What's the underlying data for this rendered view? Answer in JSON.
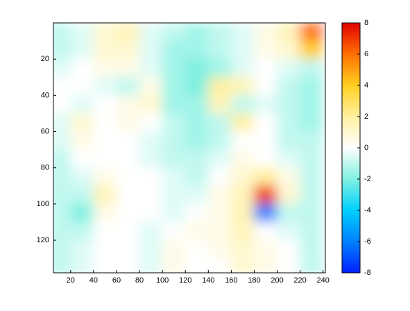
{
  "chart_data": {
    "type": "contour",
    "x": [
      10,
      30,
      50,
      70,
      90,
      110,
      130,
      150,
      170,
      190,
      210,
      230
    ],
    "y": [
      5,
      15,
      25,
      35,
      45,
      55,
      65,
      75,
      85,
      95,
      105,
      115,
      125,
      135
    ],
    "z": [
      [
        -1,
        -0.5,
        1,
        1.5,
        -0.5,
        -1,
        -1.5,
        -1,
        -0.5,
        0.5,
        1.5,
        6
      ],
      [
        -1,
        -0.5,
        1,
        1,
        -0.5,
        -1.5,
        -1.5,
        -1,
        -0.5,
        0.5,
        1,
        4
      ],
      [
        -0.5,
        0,
        0.5,
        0.5,
        -0.5,
        -1.5,
        -2,
        -1.5,
        -0.5,
        0,
        -0.5,
        -1
      ],
      [
        0,
        0,
        -0.5,
        -1,
        0.5,
        -1.5,
        -2,
        2,
        1.5,
        0,
        -1,
        -1.5
      ],
      [
        0,
        -0.5,
        0,
        0.5,
        1,
        -1.5,
        -1.5,
        1.5,
        -1,
        -0.5,
        -1,
        -1.5
      ],
      [
        -0.5,
        1,
        0,
        0.5,
        0,
        -1,
        -1.5,
        -1,
        2,
        0,
        -1,
        -1.5
      ],
      [
        -0.5,
        0.5,
        0,
        0,
        -0.5,
        -1,
        -1.5,
        -1,
        0,
        0,
        -1,
        -1
      ],
      [
        -1,
        0,
        0,
        0,
        -0.5,
        -1,
        -1,
        -0.5,
        0.5,
        0,
        -0.5,
        -1
      ],
      [
        -1,
        -0.5,
        0.5,
        0,
        0,
        -0.5,
        -1,
        0,
        1,
        2,
        0.5,
        -1
      ],
      [
        -1,
        -1,
        1.5,
        0,
        0,
        -0.5,
        -0.5,
        0.5,
        1.5,
        7,
        1,
        -1
      ],
      [
        -1,
        -2,
        0.5,
        0,
        0,
        -0.5,
        0,
        0.5,
        1.5,
        -6,
        -1,
        -1
      ],
      [
        -1,
        -1,
        0,
        0,
        -0.5,
        0,
        0.5,
        0.5,
        1.5,
        0,
        -0.5,
        -1
      ],
      [
        -1,
        -0.5,
        0,
        0,
        -0.5,
        0.5,
        0,
        0.5,
        1,
        0.5,
        0,
        -1
      ],
      [
        -1,
        -0.5,
        0,
        0,
        -0.5,
        0.5,
        0,
        0,
        1,
        0.5,
        0,
        -1
      ]
    ],
    "xlim": [
      5,
      242
    ],
    "xticks": [
      20,
      40,
      60,
      80,
      100,
      120,
      140,
      160,
      180,
      200,
      220,
      240
    ],
    "ylim": [
      0,
      138
    ],
    "yticks": [
      20,
      40,
      60,
      80,
      100,
      120
    ],
    "y_reversed": true,
    "zlim": [
      -8,
      8
    ],
    "zticks": [
      -8,
      -6,
      -4,
      -2,
      0,
      2,
      4,
      6,
      8
    ],
    "colormap": [
      "#0020ff",
      "#0080ff",
      "#00d0ff",
      "#80f0e0",
      "#ffffff",
      "#fff0a0",
      "#ffd020",
      "#ff7000",
      "#e00000"
    ]
  }
}
